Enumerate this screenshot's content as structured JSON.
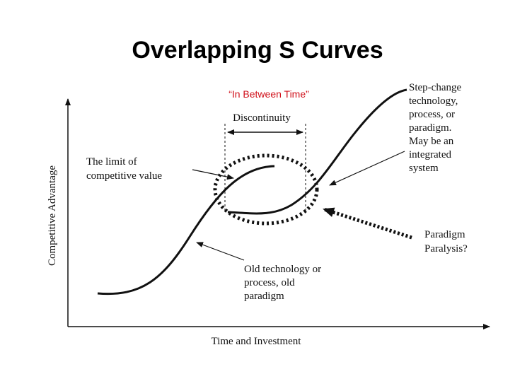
{
  "title": "Overlapping S Curves",
  "annotation": "“In Between Time”",
  "diagram": {
    "y_axis_label": "Competitive Advantage",
    "x_axis_label": "Time and Investment",
    "discontinuity": "Discontinuity",
    "limit_label": [
      "The limit of",
      "competitive value"
    ],
    "step_change_label": [
      "Step-change",
      "technology,",
      "process, or",
      "paradigm.",
      "May be an",
      "integrated",
      "system"
    ],
    "paralysis_label": [
      "Paradigm",
      "Paralysis?"
    ],
    "old_label": [
      "Old technology or",
      "process, old",
      "paradigm"
    ]
  }
}
